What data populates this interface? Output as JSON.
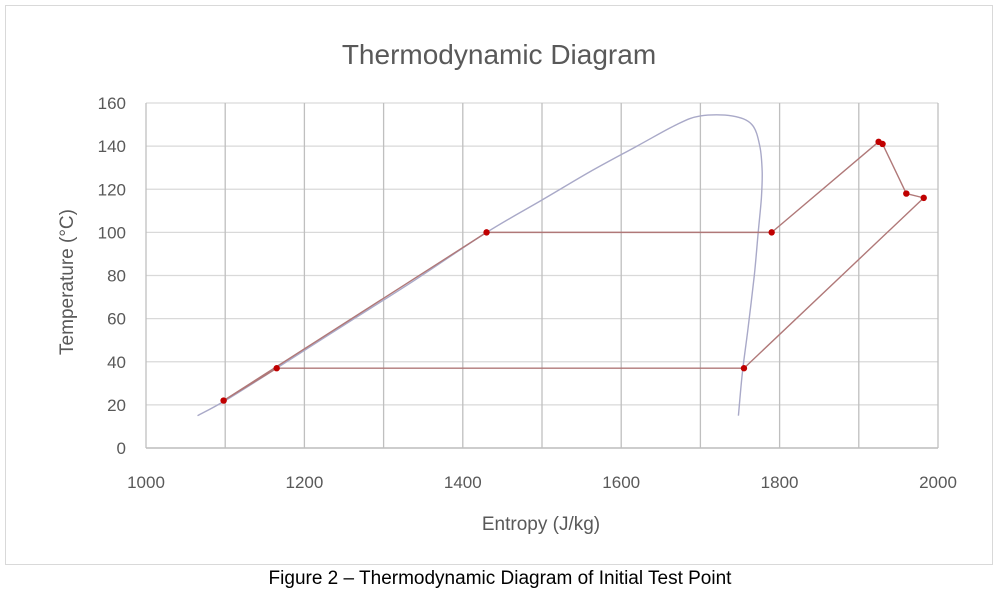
{
  "caption": "Figure 2 – Thermodynamic Diagram of Initial Test Point",
  "chart_data": {
    "type": "scatter",
    "title": "Thermodynamic Diagram",
    "xlabel": "Entropy (J/kg)",
    "ylabel": "Temperature (°C)",
    "xlim": [
      1000,
      2000
    ],
    "ylim": [
      0,
      160
    ],
    "x_ticks": [
      1000,
      1200,
      1400,
      1600,
      1800,
      2000
    ],
    "x_minor_gridlines": [
      1100,
      1300,
      1500,
      1700,
      1900
    ],
    "y_ticks": [
      0,
      20,
      40,
      60,
      80,
      100,
      120,
      140,
      160
    ],
    "grid": true,
    "legend": "none",
    "series": [
      {
        "role": "saturation-dome",
        "color": "#a9a9c8",
        "style": "smooth-line",
        "x": [
          1065,
          1100,
          1165,
          1250,
          1340,
          1430,
          1500,
          1560,
          1620,
          1670,
          1700,
          1740,
          1765,
          1775,
          1778,
          1777,
          1773,
          1768,
          1760,
          1753,
          1748
        ],
        "y": [
          15,
          22,
          37,
          57,
          78,
          100,
          115,
          128,
          140,
          150,
          154,
          154,
          150,
          140,
          128,
          116,
          100,
          80,
          55,
          35,
          15
        ]
      },
      {
        "role": "cycle",
        "color": "#b07878",
        "marker_color": "#c00000",
        "style": "line-with-markers",
        "x": [
          1098,
          1430,
          1790,
          1925,
          1930,
          1960,
          1982,
          1755,
          1165
        ],
        "y": [
          22,
          100,
          100,
          142,
          141,
          118,
          116,
          37,
          37
        ],
        "closed": true
      }
    ]
  }
}
